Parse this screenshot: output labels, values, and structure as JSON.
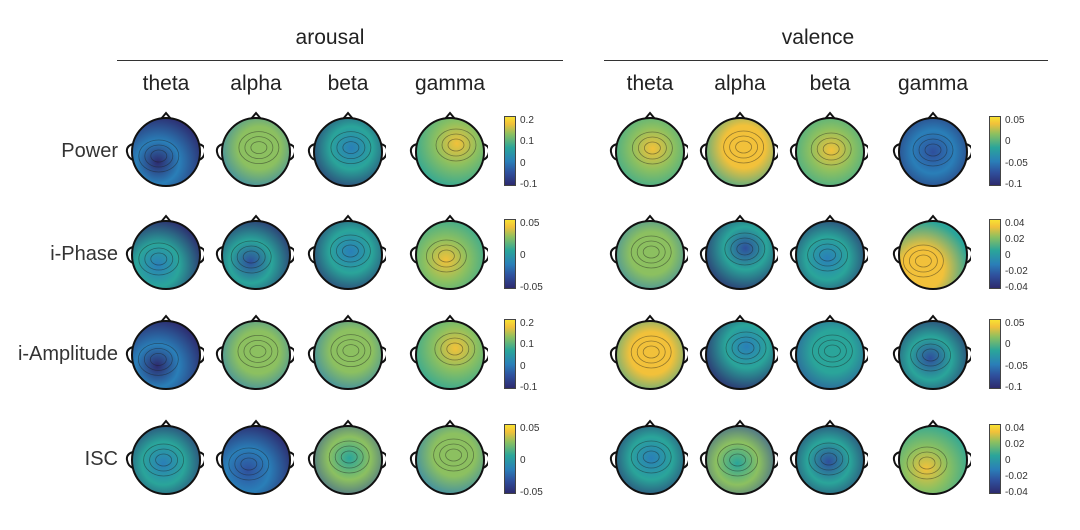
{
  "groups": [
    {
      "title": "arousal",
      "bands": [
        "theta",
        "alpha",
        "beta",
        "gamma"
      ]
    },
    {
      "title": "valence",
      "bands": [
        "theta",
        "alpha",
        "beta",
        "gamma"
      ]
    }
  ],
  "rows": [
    "Power",
    "i-Phase",
    "i-Amplitude",
    "ISC"
  ],
  "colorbars": {
    "arousal": [
      [
        "0.2",
        "0.1",
        "0",
        "-0.1"
      ],
      [
        "0.05",
        "0",
        "-0.05"
      ],
      [
        "0.2",
        "0.1",
        "0",
        "-0.1"
      ],
      [
        "0.05",
        "0",
        "-0.05"
      ]
    ],
    "valence": [
      [
        "0.05",
        "0",
        "-0.05",
        "-0.1"
      ],
      [
        "0.04",
        "0.02",
        "0",
        "-0.02",
        "-0.04"
      ],
      [
        "0.05",
        "0",
        "-0.05",
        "-0.1"
      ],
      [
        "0.04",
        "0.02",
        "0",
        "-0.02",
        "-0.04"
      ]
    ]
  },
  "colormap": [
    "#2d2a6e",
    "#2f4f9c",
    "#2a7fb8",
    "#2aa59a",
    "#8cc060",
    "#f2c13a",
    "#f8e232"
  ],
  "maps": {
    "arousal": [
      [
        [
          0.05,
          0.2
        ],
        [
          0.7,
          0.62
        ],
        [
          0.25,
          0.62
        ],
        [
          0.78,
          0.75
        ]
      ],
      [
        [
          0.3,
          0.2
        ],
        [
          0.2,
          0.3
        ],
        [
          0.35,
          0.6
        ],
        [
          0.8,
          0.35
        ]
      ],
      [
        [
          0.05,
          0.18
        ],
        [
          0.68,
          0.58
        ],
        [
          0.7,
          0.62
        ],
        [
          0.75,
          0.7
        ]
      ],
      [
        [
          0.35,
          0.4
        ],
        [
          0.1,
          0.2
        ],
        [
          0.55,
          0.55
        ],
        [
          0.7,
          0.65
        ]
      ]
    ],
    "valence": [
      [
        [
          0.78,
          0.6
        ],
        [
          0.85,
          0.65
        ],
        [
          0.75,
          0.55
        ],
        [
          0.1,
          0.5
        ]
      ],
      [
        [
          0.6,
          0.55
        ],
        [
          0.2,
          0.7
        ],
        [
          0.35,
          0.4
        ],
        [
          0.9,
          0.1
        ]
      ],
      [
        [
          0.85,
          0.55
        ],
        [
          0.4,
          0.75
        ],
        [
          0.45,
          0.6
        ],
        [
          0.2,
          0.4
        ]
      ],
      [
        [
          0.4,
          0.55
        ],
        [
          0.5,
          0.4
        ],
        [
          0.2,
          0.45
        ],
        [
          0.75,
          0.25
        ]
      ]
    ]
  }
}
